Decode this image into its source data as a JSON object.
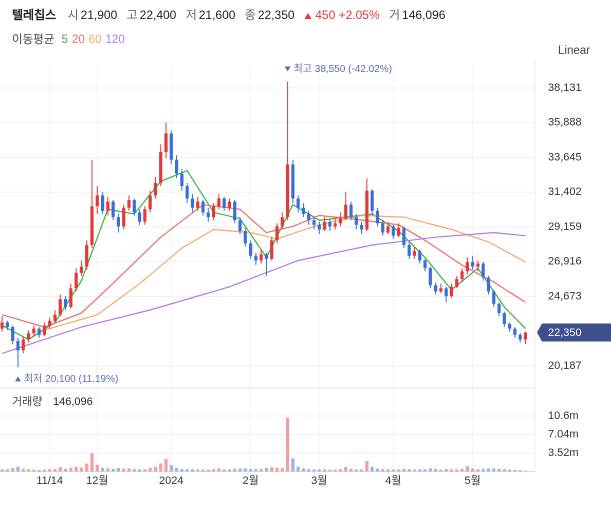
{
  "header": {
    "name": "텔레칩스",
    "items": [
      {
        "label": "시",
        "value": "21,900"
      },
      {
        "label": "고",
        "value": "22,400"
      },
      {
        "label": "저",
        "value": "21,600"
      },
      {
        "label": "종",
        "value": "22,350"
      }
    ],
    "change": "450",
    "change_pct": "+2.05%",
    "volume_label": "거",
    "volume": "146,096"
  },
  "ma_label": "이동평균",
  "scale_mode": "Linear",
  "chart_data": {
    "type": "candlestick",
    "up_color": "#e03a3a",
    "down_color": "#3a6fd8",
    "volume_up_color": "#f0a0a0",
    "volume_down_color": "#9ab4ea",
    "candles": [
      [
        22600,
        23400,
        22400,
        23000
      ],
      [
        23000,
        23100,
        22500,
        22700
      ],
      [
        22700,
        22800,
        21600,
        21800
      ],
      [
        21800,
        22000,
        20100,
        21200
      ],
      [
        21200,
        22100,
        21000,
        21900
      ],
      [
        21900,
        22500,
        21700,
        22300
      ],
      [
        22300,
        22800,
        22100,
        22600
      ],
      [
        22600,
        22700,
        22000,
        22200
      ],
      [
        22200,
        23000,
        22100,
        22800
      ],
      [
        22800,
        23300,
        22600,
        23100
      ],
      [
        23100,
        23800,
        23000,
        23500
      ],
      [
        23500,
        24800,
        23400,
        24500
      ],
      [
        24500,
        24700,
        23800,
        24000
      ],
      [
        24000,
        25500,
        23900,
        25200
      ],
      [
        25200,
        26500,
        25000,
        26200
      ],
      [
        26200,
        27000,
        26000,
        26600
      ],
      [
        26600,
        28300,
        26400,
        28000
      ],
      [
        28000,
        33500,
        27800,
        30500
      ],
      [
        30500,
        31800,
        30000,
        31200
      ],
      [
        31200,
        31400,
        30000,
        30200
      ],
      [
        30200,
        31100,
        29900,
        30800
      ],
      [
        30800,
        30900,
        29600,
        29800
      ],
      [
        29800,
        30000,
        28800,
        29200
      ],
      [
        29200,
        30600,
        29000,
        30400
      ],
      [
        30400,
        31200,
        30200,
        30900
      ],
      [
        30900,
        31000,
        29900,
        30100
      ],
      [
        30100,
        30300,
        29300,
        29500
      ],
      [
        29500,
        30500,
        29300,
        30300
      ],
      [
        30300,
        31500,
        30100,
        31200
      ],
      [
        31200,
        32400,
        31000,
        32000
      ],
      [
        32000,
        34500,
        31800,
        34000
      ],
      [
        34000,
        35900,
        33600,
        35200
      ],
      [
        35200,
        35400,
        33200,
        33500
      ],
      [
        33500,
        33800,
        32300,
        32600
      ],
      [
        32600,
        32900,
        31500,
        31800
      ],
      [
        31800,
        32000,
        30700,
        31000
      ],
      [
        31000,
        31300,
        30100,
        30400
      ],
      [
        30400,
        31100,
        30200,
        30800
      ],
      [
        30800,
        30900,
        29900,
        30100
      ],
      [
        30100,
        30400,
        29500,
        29800
      ],
      [
        29800,
        30700,
        29600,
        30500
      ],
      [
        30500,
        31300,
        30300,
        31000
      ],
      [
        31000,
        31100,
        30200,
        30400
      ],
      [
        30400,
        31000,
        30200,
        30800
      ],
      [
        30800,
        30900,
        29400,
        29600
      ],
      [
        29600,
        29800,
        28700,
        28900
      ],
      [
        28900,
        29100,
        27900,
        28100
      ],
      [
        28100,
        28300,
        27100,
        27300
      ],
      [
        27300,
        27500,
        26700,
        27000
      ],
      [
        27000,
        27700,
        26800,
        27400
      ],
      [
        27400,
        27500,
        26000,
        27100
      ],
      [
        27100,
        28500,
        27000,
        28300
      ],
      [
        28300,
        29400,
        28100,
        29200
      ],
      [
        29200,
        30100,
        29000,
        29800
      ],
      [
        29800,
        38550,
        29600,
        33200
      ],
      [
        33200,
        33500,
        30700,
        31000
      ],
      [
        31000,
        31200,
        30100,
        30400
      ],
      [
        30400,
        30700,
        29800,
        30000
      ],
      [
        30000,
        30200,
        29300,
        29600
      ],
      [
        29600,
        29800,
        29000,
        29300
      ],
      [
        29300,
        29500,
        28700,
        29000
      ],
      [
        29000,
        29800,
        28900,
        29500
      ],
      [
        29500,
        29700,
        28900,
        29200
      ],
      [
        29200,
        29700,
        29000,
        29400
      ],
      [
        29400,
        30100,
        29200,
        29700
      ],
      [
        29700,
        31400,
        29600,
        30600
      ],
      [
        30600,
        30800,
        29600,
        29800
      ],
      [
        29800,
        30000,
        29000,
        29300
      ],
      [
        29300,
        29500,
        28700,
        29000
      ],
      [
        29000,
        32300,
        28900,
        31500
      ],
      [
        31500,
        31600,
        29900,
        30200
      ],
      [
        30200,
        30400,
        29200,
        29400
      ],
      [
        29400,
        29600,
        28600,
        28800
      ],
      [
        28800,
        29500,
        28700,
        29200
      ],
      [
        29200,
        29300,
        28400,
        28600
      ],
      [
        28600,
        29400,
        28500,
        29100
      ],
      [
        29100,
        29200,
        27800,
        28000
      ],
      [
        28000,
        28200,
        27100,
        27300
      ],
      [
        27300,
        27900,
        27100,
        27600
      ],
      [
        27600,
        27700,
        26800,
        27000
      ],
      [
        27000,
        27100,
        26300,
        26500
      ],
      [
        26500,
        26600,
        25200,
        25400
      ],
      [
        25400,
        25600,
        24800,
        25000
      ],
      [
        25000,
        25500,
        24900,
        25200
      ],
      [
        25200,
        25300,
        24300,
        24700
      ],
      [
        24700,
        25500,
        24600,
        25300
      ],
      [
        25300,
        26000,
        25200,
        25800
      ],
      [
        25800,
        26500,
        25600,
        26300
      ],
      [
        26300,
        27200,
        26100,
        26900
      ],
      [
        26900,
        27300,
        26400,
        26600
      ],
      [
        26600,
        27000,
        26300,
        26800
      ],
      [
        26800,
        26900,
        25700,
        25900
      ],
      [
        25900,
        26000,
        24800,
        25000
      ],
      [
        25000,
        25100,
        24000,
        24200
      ],
      [
        24200,
        24300,
        23400,
        23600
      ],
      [
        23600,
        23700,
        22700,
        22900
      ],
      [
        22900,
        23000,
        22400,
        22600
      ],
      [
        22600,
        22700,
        22000,
        22200
      ],
      [
        22200,
        22300,
        21700,
        21900
      ],
      [
        21900,
        22400,
        21600,
        22350
      ]
    ],
    "volume": [
      420000,
      380000,
      650000,
      900000,
      520000,
      410000,
      350000,
      300000,
      380000,
      420000,
      450000,
      800000,
      500000,
      700000,
      900000,
      750000,
      1500000,
      3500000,
      1300000,
      700000,
      600000,
      500000,
      650000,
      550000,
      600000,
      450000,
      400000,
      420000,
      700000,
      900000,
      1500000,
      2400000,
      1200000,
      700000,
      500000,
      450000,
      400000,
      380000,
      350000,
      330000,
      450000,
      600000,
      400000,
      420000,
      500000,
      550000,
      600000,
      500000,
      450000,
      480000,
      700000,
      800000,
      700000,
      650000,
      10200000,
      2500000,
      900000,
      600000,
      450000,
      400000,
      380000,
      420000,
      350000,
      330000,
      450000,
      900000,
      500000,
      400000,
      380000,
      2000000,
      900000,
      550000,
      450000,
      420000,
      380000,
      420000,
      500000,
      450000,
      380000,
      400000,
      420000,
      600000,
      500000,
      380000,
      450000,
      420000,
      400000,
      500000,
      1000000,
      550000,
      450000,
      500000,
      550000,
      600000,
      500000,
      420000,
      350000,
      300000,
      250000,
      146096
    ],
    "series": [
      {
        "name": "5",
        "color": "#3cb043",
        "x": [
          0,
          5,
          10,
          15,
          20,
          25,
          30,
          35,
          40,
          45,
          50,
          55,
          60,
          65,
          70,
          75,
          80,
          85,
          90,
          95,
          99
        ],
        "values": [
          22800,
          21900,
          23000,
          25700,
          30300,
          30000,
          32100,
          32800,
          30100,
          29700,
          27200,
          30600,
          29600,
          29800,
          30000,
          28900,
          27200,
          25100,
          26500,
          24000,
          22600
        ]
      },
      {
        "name": "20",
        "color": "#f06a6a",
        "x": [
          0,
          8,
          15,
          20,
          30,
          38,
          45,
          50,
          55,
          60,
          66,
          75,
          80,
          87,
          93,
          99
        ],
        "values": [
          23500,
          22700,
          23600,
          25200,
          28500,
          30600,
          30300,
          28800,
          29200,
          29900,
          29700,
          29300,
          28300,
          26700,
          25600,
          24300
        ]
      },
      {
        "name": "60",
        "color": "#f5a96a",
        "x": [
          8,
          18,
          26,
          34,
          40,
          47,
          52,
          60,
          68,
          76,
          85,
          92,
          99
        ],
        "values": [
          22500,
          23500,
          25500,
          27800,
          29000,
          28800,
          28400,
          29300,
          29900,
          29800,
          29000,
          28200,
          26900
        ]
      },
      {
        "name": "120",
        "color": "#b07ae8",
        "x": [
          0,
          15,
          28,
          43,
          56,
          70,
          82,
          93,
          99
        ],
        "values": [
          21000,
          22700,
          23800,
          25300,
          27000,
          28000,
          28500,
          28800,
          28600
        ]
      }
    ],
    "xlim": [
      -0.4,
      100.8
    ],
    "xticks": [
      {
        "value": 9,
        "label": "11/14"
      },
      {
        "value": 18,
        "label": "12월"
      },
      {
        "value": 32,
        "label": "2024"
      },
      {
        "value": 47,
        "label": "2월"
      },
      {
        "value": 60,
        "label": "3월"
      },
      {
        "value": 74,
        "label": "4월"
      },
      {
        "value": 89,
        "label": "5월"
      }
    ],
    "ylim": [
      18961,
      39616
    ],
    "yticks": [
      {
        "value": 20187,
        "label": "20,187"
      },
      {
        "value": 24673,
        "label": "24,673"
      },
      {
        "value": 26916,
        "label": "26,916"
      },
      {
        "value": 29159,
        "label": "29,159"
      },
      {
        "value": 31402,
        "label": "31,402"
      },
      {
        "value": 33645,
        "label": "33,645"
      },
      {
        "value": 35888,
        "label": "35,888"
      },
      {
        "value": 38131,
        "label": "38,131"
      }
    ],
    "last_price_label": "22,350",
    "high_annotation": "최고 38,550 (-42.02%)",
    "low_annotation": "최저 20,100 (11.19%)",
    "volume_title": "거래량",
    "volume_last_label": "146,096",
    "volume_ylim": [
      0,
      15500000
    ],
    "volume_yticks": [
      {
        "value": 3520000,
        "label": "3.52m"
      },
      {
        "value": 7040000,
        "label": "7.04m"
      },
      {
        "value": 10560000,
        "label": "10.6m"
      }
    ],
    "grid": true
  }
}
